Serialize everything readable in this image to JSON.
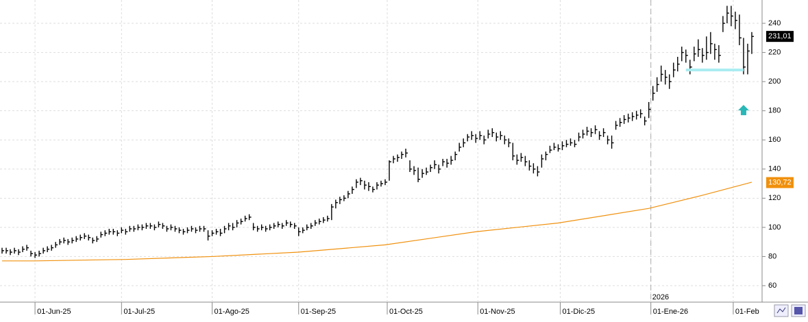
{
  "chart_data": {
    "type": "ohlc",
    "color": "#000000",
    "xlim": [
      -0.5,
      184.5
    ],
    "ylim": [
      48.7,
      256
    ],
    "yticks": [
      60,
      80,
      100,
      120,
      140,
      160,
      180,
      200,
      220,
      240
    ],
    "grid": true,
    "xticks": [
      {
        "value": 8,
        "label": "01-Jun-25"
      },
      {
        "value": 29,
        "label": "01-Jul-25"
      },
      {
        "value": 51,
        "label": "01-Ago-25"
      },
      {
        "value": 72,
        "label": "01-Sep-25"
      },
      {
        "value": 93.5,
        "label": "01-Oct-25"
      },
      {
        "value": 115.5,
        "label": "01-Nov-25"
      },
      {
        "value": 135.5,
        "label": "01-Dic-25"
      },
      {
        "value": 157.5,
        "label": "01-Ene-26"
      },
      {
        "value": 177.5,
        "label": "01-Feb"
      }
    ],
    "year_marker": {
      "x": 157.5,
      "label": "2026"
    },
    "close": [
      84,
      84,
      83,
      84,
      83,
      85,
      86,
      82,
      81,
      82,
      84,
      85,
      86,
      88,
      90,
      91,
      90,
      91,
      92,
      93,
      94,
      93,
      91,
      92,
      95,
      96,
      97,
      97,
      96,
      98,
      97,
      99,
      99,
      100,
      100,
      101,
      101,
      100,
      102,
      101,
      99,
      100,
      99,
      98,
      97,
      98,
      99,
      98,
      99,
      99,
      94,
      96,
      97,
      96,
      99,
      101,
      100,
      103,
      104,
      106,
      107,
      100,
      99,
      100,
      99,
      100,
      101,
      102,
      101,
      103,
      102,
      101,
      97,
      98,
      100,
      101,
      103,
      104,
      105,
      106,
      114,
      117,
      119,
      120,
      123,
      126,
      131,
      132,
      129,
      128,
      126,
      129,
      130,
      131,
      145,
      147,
      148,
      150,
      151,
      140,
      139,
      133,
      137,
      138,
      141,
      143,
      140,
      145,
      144,
      146,
      150,
      155,
      158,
      162,
      163,
      161,
      163,
      160,
      164,
      165,
      162,
      163,
      160,
      158,
      149,
      146,
      148,
      145,
      142,
      140,
      138,
      147,
      150,
      153,
      155,
      154,
      156,
      157,
      158,
      157,
      162,
      164,
      166,
      165,
      167,
      163,
      165,
      160,
      158,
      170,
      172,
      174,
      175,
      176,
      177,
      178,
      173,
      181,
      192,
      198,
      205,
      203,
      200,
      208,
      212,
      220,
      218,
      210,
      219,
      222,
      218,
      220,
      226,
      222,
      218,
      240,
      247,
      245,
      242,
      230,
      210,
      221,
      231
    ],
    "high": [
      86,
      86,
      85,
      86,
      85,
      87,
      88,
      84,
      83,
      84,
      86,
      87,
      88,
      90,
      92,
      93,
      92,
      93,
      94,
      95,
      96,
      95,
      93,
      94,
      97,
      98,
      99,
      99,
      98,
      100,
      99,
      101,
      101,
      102,
      102,
      103,
      103,
      102,
      104,
      103,
      101,
      102,
      101,
      100,
      99,
      100,
      101,
      100,
      101,
      101,
      98,
      98,
      99,
      99,
      101,
      103,
      103,
      105,
      106,
      108,
      109,
      103,
      101,
      102,
      101,
      102,
      103,
      104,
      103,
      105,
      104,
      103,
      100,
      100,
      102,
      103,
      105,
      106,
      107,
      108,
      116,
      119,
      121,
      122,
      125,
      128,
      133,
      134,
      132,
      131,
      128,
      131,
      132,
      133,
      146,
      149,
      150,
      152,
      154,
      146,
      142,
      141,
      140,
      141,
      143,
      146,
      143,
      147,
      147,
      149,
      152,
      158,
      161,
      164,
      166,
      164,
      166,
      163,
      167,
      168,
      165,
      166,
      163,
      161,
      158,
      150,
      151,
      149,
      146,
      144,
      142,
      150,
      152,
      156,
      158,
      157,
      159,
      160,
      161,
      160,
      165,
      167,
      169,
      168,
      170,
      166,
      168,
      163,
      163,
      173,
      175,
      177,
      178,
      179,
      180,
      181,
      176,
      186,
      197,
      203,
      211,
      208,
      205,
      213,
      217,
      224,
      222,
      215,
      224,
      229,
      223,
      231,
      234,
      226,
      225,
      245,
      252,
      252,
      248,
      246,
      230,
      226,
      234
    ],
    "low": [
      82,
      82,
      81,
      82,
      81,
      83,
      84,
      80,
      79,
      80,
      82,
      83,
      84,
      86,
      88,
      89,
      88,
      89,
      90,
      91,
      92,
      91,
      89,
      90,
      93,
      94,
      95,
      95,
      94,
      96,
      95,
      97,
      97,
      98,
      98,
      99,
      99,
      98,
      100,
      99,
      97,
      98,
      97,
      96,
      95,
      96,
      97,
      96,
      97,
      97,
      91,
      94,
      95,
      94,
      96,
      98,
      98,
      100,
      102,
      104,
      105,
      98,
      97,
      98,
      97,
      98,
      99,
      100,
      99,
      101,
      100,
      99,
      94,
      96,
      98,
      99,
      101,
      102,
      103,
      104,
      105,
      113,
      116,
      118,
      120,
      123,
      127,
      129,
      126,
      125,
      124,
      126,
      128,
      129,
      132,
      144,
      145,
      147,
      148,
      138,
      136,
      131,
      134,
      136,
      138,
      140,
      137,
      142,
      141,
      143,
      146,
      152,
      155,
      159,
      160,
      158,
      160,
      157,
      161,
      162,
      159,
      160,
      157,
      155,
      146,
      143,
      145,
      142,
      139,
      137,
      135,
      141,
      146,
      151,
      153,
      152,
      153,
      155,
      156,
      155,
      159,
      161,
      163,
      162,
      164,
      160,
      162,
      157,
      154,
      167,
      169,
      171,
      172,
      173,
      174,
      175,
      170,
      175,
      187,
      193,
      200,
      198,
      195,
      203,
      207,
      214,
      213,
      205,
      214,
      217,
      213,
      215,
      219,
      215,
      213,
      234,
      240,
      238,
      236,
      225,
      205,
      205,
      219
    ],
    "last_price": {
      "value": 231.01,
      "label": "231,01"
    },
    "moving_average": {
      "color": "#f0900c",
      "x": [
        0,
        8,
        30,
        51,
        72,
        93,
        115,
        135,
        157,
        170,
        182
      ],
      "values": [
        77,
        77,
        78,
        80,
        83,
        88,
        97,
        103,
        113,
        122,
        131
      ],
      "last": {
        "value": 130.72,
        "label": "130,72"
      }
    },
    "support_line": {
      "color": "#a8ecf0",
      "value": 208,
      "x": [
        166,
        180
      ]
    },
    "arrow": {
      "color": "#2ab7b7",
      "x": 180,
      "value": 184
    }
  }
}
